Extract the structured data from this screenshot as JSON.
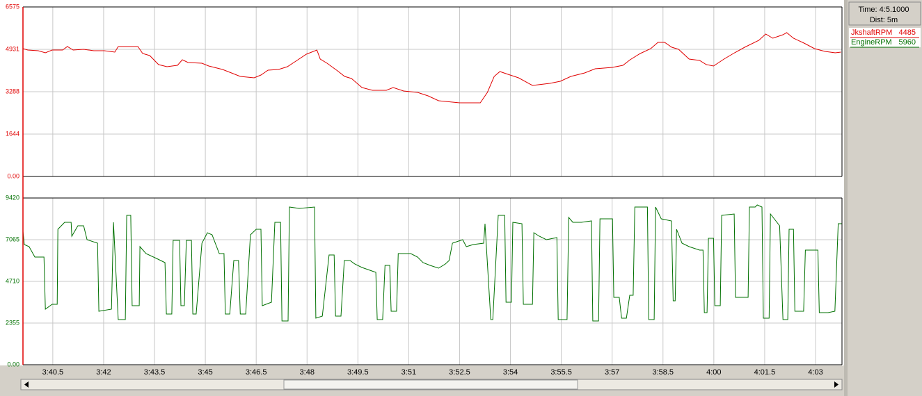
{
  "panel": {
    "time": "Time: 4:5.1000",
    "dist": "Dist: 5m"
  },
  "chart_data": [
    {
      "type": "line",
      "x": [
        219.62,
        219.76,
        220.07,
        220.28,
        220.48,
        220.79,
        220.93,
        221.1,
        221.41,
        221.71,
        222.02,
        222.33,
        222.43,
        222.74,
        223.01,
        223.15,
        223.36,
        223.62,
        223.87,
        224.18,
        224.32,
        224.49,
        224.9,
        225.1,
        225.51,
        226.03,
        226.44,
        226.64,
        226.85,
        227.16,
        227.42,
        227.67,
        227.98,
        228.29,
        228.39,
        228.59,
        228.9,
        229.11,
        229.31,
        229.62,
        229.93,
        230.34,
        230.54,
        230.85,
        231.26,
        231.57,
        231.88,
        232.5,
        233.11,
        233.32,
        233.52,
        233.69,
        233.93,
        234.24,
        234.65,
        235.16,
        235.47,
        235.78,
        236.19,
        236.5,
        237.01,
        237.32,
        237.53,
        237.83,
        238.14,
        238.35,
        238.55,
        238.76,
        238.96,
        239.27,
        239.58,
        239.78,
        239.99,
        240.3,
        240.61,
        240.91,
        241.33,
        241.53,
        241.74,
        242.04,
        242.15,
        242.35,
        242.66,
        242.97,
        243.28,
        243.58,
        243.75
      ],
      "series": [
        {
          "name": "JkshaftRPM",
          "readout": 4485,
          "color": "#e00000",
          "values": [
            4959,
            4905,
            4878,
            4797,
            4905,
            4905,
            5040,
            4905,
            4932,
            4878,
            4878,
            4824,
            5040,
            5040,
            5040,
            4770,
            4689,
            4339,
            4258,
            4312,
            4528,
            4420,
            4393,
            4285,
            4150,
            3881,
            3827,
            3935,
            4123,
            4150,
            4258,
            4474,
            4743,
            4905,
            4555,
            4393,
            4096,
            3881,
            3800,
            3450,
            3342,
            3342,
            3450,
            3315,
            3261,
            3126,
            2938,
            2857,
            2857,
            3261,
            3881,
            4069,
            3962,
            3827,
            3530,
            3611,
            3692,
            3881,
            4016,
            4177,
            4231,
            4312,
            4528,
            4770,
            4959,
            5201,
            5201,
            5013,
            4932,
            4555,
            4501,
            4339,
            4285,
            4555,
            4797,
            5013,
            5282,
            5525,
            5363,
            5498,
            5579,
            5363,
            5174,
            4959,
            4851,
            4797,
            4824
          ]
        }
      ],
      "xlim": [
        219.62,
        243.78
      ],
      "ylim": [
        0,
        6575
      ],
      "yticks": [
        {
          "value": 0,
          "label": "0.00"
        },
        1644,
        3288,
        4931,
        6575
      ],
      "grid": true
    },
    {
      "type": "line",
      "x": [
        219.62,
        219.66,
        219.8,
        219.97,
        220.24,
        220.28,
        220.48,
        220.63,
        220.65,
        220.85,
        221.04,
        221.06,
        221.24,
        221.41,
        221.51,
        221.82,
        221.86,
        222.23,
        222.29,
        222.43,
        222.64,
        222.68,
        222.8,
        222.84,
        223.05,
        223.07,
        223.25,
        223.56,
        223.81,
        223.85,
        224.01,
        224.05,
        224.24,
        224.28,
        224.38,
        224.44,
        224.59,
        224.63,
        224.73,
        224.9,
        225.06,
        225.2,
        225.41,
        225.55,
        225.59,
        225.72,
        225.84,
        225.98,
        226.03,
        226.19,
        226.33,
        226.5,
        226.64,
        226.68,
        226.95,
        227.05,
        227.22,
        227.26,
        227.44,
        227.48,
        227.77,
        228.22,
        228.26,
        228.45,
        228.65,
        228.8,
        228.84,
        229.0,
        229.1,
        229.27,
        229.41,
        229.62,
        230.03,
        230.07,
        230.23,
        230.3,
        230.44,
        230.48,
        230.64,
        230.69,
        231.06,
        231.26,
        231.42,
        231.63,
        231.88,
        232.08,
        232.19,
        232.29,
        232.59,
        232.7,
        232.9,
        233.21,
        233.25,
        233.42,
        233.48,
        233.64,
        233.83,
        233.87,
        234.03,
        234.07,
        234.34,
        234.38,
        234.65,
        234.69,
        234.85,
        235.06,
        235.37,
        235.41,
        235.67,
        235.72,
        235.84,
        236.09,
        236.39,
        236.43,
        236.6,
        236.64,
        237.01,
        237.05,
        237.21,
        237.28,
        237.42,
        237.52,
        237.62,
        237.67,
        238.04,
        238.08,
        238.24,
        238.28,
        238.45,
        238.75,
        238.8,
        238.86,
        238.9,
        239.06,
        239.27,
        239.58,
        239.68,
        239.72,
        239.8,
        239.84,
        239.99,
        240.03,
        240.19,
        240.23,
        240.6,
        240.64,
        241.01,
        241.05,
        241.22,
        241.28,
        241.42,
        241.46,
        241.63,
        241.67,
        241.83,
        241.94,
        242.04,
        242.18,
        242.22,
        242.35,
        242.39,
        242.65,
        242.7,
        243.07,
        243.11,
        243.37,
        243.57,
        243.67,
        243.77
      ],
      "series": [
        {
          "name": "EngineRPM",
          "readout": 5960,
          "color": "#007000",
          "values": [
            7536,
            6790,
            6673,
            6084,
            6084,
            3140,
            3415,
            3415,
            7654,
            8046,
            8046,
            7261,
            7850,
            7850,
            7065,
            6869,
            3022,
            3140,
            8046,
            2551,
            2551,
            8439,
            8439,
            3336,
            3336,
            6673,
            6280,
            6005,
            5770,
            2865,
            2865,
            7026,
            7026,
            3336,
            3336,
            7026,
            7026,
            2865,
            2865,
            6869,
            7458,
            7340,
            6280,
            6280,
            2865,
            2865,
            5888,
            5888,
            2865,
            2865,
            7340,
            7654,
            7654,
            3336,
            3533,
            8046,
            8046,
            2473,
            2473,
            8910,
            8831,
            8910,
            2630,
            2748,
            6202,
            6202,
            2748,
            2748,
            5888,
            5888,
            5691,
            5495,
            5220,
            2551,
            2551,
            5613,
            5613,
            3022,
            3022,
            6280,
            6280,
            6084,
            5770,
            5613,
            5456,
            5691,
            5888,
            6869,
            7065,
            6673,
            6790,
            6869,
            7968,
            2551,
            2551,
            8439,
            8439,
            3533,
            3533,
            8046,
            7968,
            3415,
            3415,
            7458,
            7261,
            7065,
            7183,
            2551,
            2551,
            8321,
            8046,
            8046,
            8125,
            2473,
            2473,
            8243,
            8243,
            3807,
            3807,
            2630,
            2630,
            3925,
            3925,
            8910,
            8910,
            2551,
            2551,
            8910,
            8243,
            8125,
            3611,
            3611,
            7654,
            6869,
            6673,
            6476,
            6476,
            2944,
            2944,
            7144,
            7144,
            3336,
            3336,
            8439,
            8517,
            3807,
            3807,
            8910,
            8910,
            9028,
            8910,
            2630,
            2630,
            8517,
            8125,
            7850,
            2551,
            2551,
            7654,
            7654,
            3022,
            3022,
            6476,
            6476,
            2944,
            2944,
            3022,
            7968,
            7968
          ]
        }
      ],
      "xlim": [
        219.62,
        243.78
      ],
      "xticks": [
        {
          "value": 220.5,
          "label": "3:40.5"
        },
        {
          "value": 222,
          "label": "3:42"
        },
        {
          "value": 223.5,
          "label": "3:43.5"
        },
        {
          "value": 225,
          "label": "3:45"
        },
        {
          "value": 226.5,
          "label": "3:46.5"
        },
        {
          "value": 228,
          "label": "3:48"
        },
        {
          "value": 229.5,
          "label": "3:49.5"
        },
        {
          "value": 231,
          "label": "3:51"
        },
        {
          "value": 232.5,
          "label": "3:52.5"
        },
        {
          "value": 234,
          "label": "3:54"
        },
        {
          "value": 235.5,
          "label": "3:55.5"
        },
        {
          "value": 237,
          "label": "3:57"
        },
        {
          "value": 238.5,
          "label": "3:58.5"
        },
        {
          "value": 240,
          "label": "4:00"
        },
        {
          "value": 241.5,
          "label": "4:01.5"
        },
        {
          "value": 243,
          "label": "4:03"
        }
      ],
      "ylim": [
        0,
        9420
      ],
      "yticks": [
        {
          "value": 0,
          "label": "0.00"
        },
        2355,
        4710,
        7065,
        9420
      ],
      "grid": true
    }
  ]
}
